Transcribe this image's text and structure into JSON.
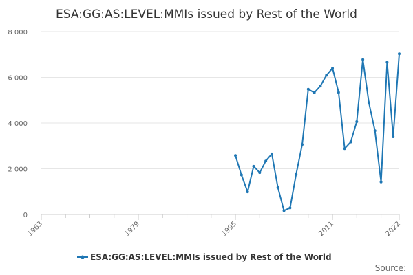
{
  "chart_data": {
    "type": "line",
    "title": "ESA:GG:AS:LEVEL:MMIs issued by Rest of the World",
    "xlabel": "",
    "ylabel": "",
    "xlim": [
      1963,
      2022
    ],
    "ylim": [
      0,
      8000
    ],
    "x_ticks": [
      1963,
      1979,
      1995,
      2011,
      2022
    ],
    "y_ticks": [
      0,
      2000,
      4000,
      6000,
      8000
    ],
    "y_tick_labels": [
      "0",
      "2 000",
      "4 000",
      "6 000",
      "8 000"
    ],
    "grid": true,
    "legend_position": "bottom",
    "series": [
      {
        "name": "ESA:GG:AS:LEVEL:MMIs issued by Rest of the World",
        "color": "#1f77b4",
        "x": [
          1995,
          1996,
          1997,
          1998,
          1999,
          2000,
          2001,
          2002,
          2003,
          2004,
          2005,
          2006,
          2007,
          2008,
          2009,
          2010,
          2011,
          2012,
          2013,
          2014,
          2015,
          2016,
          2017,
          2018,
          2019,
          2020,
          2021,
          2022
        ],
        "values": [
          2580,
          1730,
          990,
          2110,
          1830,
          2340,
          2650,
          1180,
          170,
          290,
          1760,
          3060,
          5480,
          5330,
          5620,
          6090,
          6400,
          5340,
          2880,
          3170,
          4060,
          6780,
          4890,
          3660,
          1420,
          6660,
          3400,
          7030
        ]
      }
    ],
    "source_label": "Source:"
  }
}
